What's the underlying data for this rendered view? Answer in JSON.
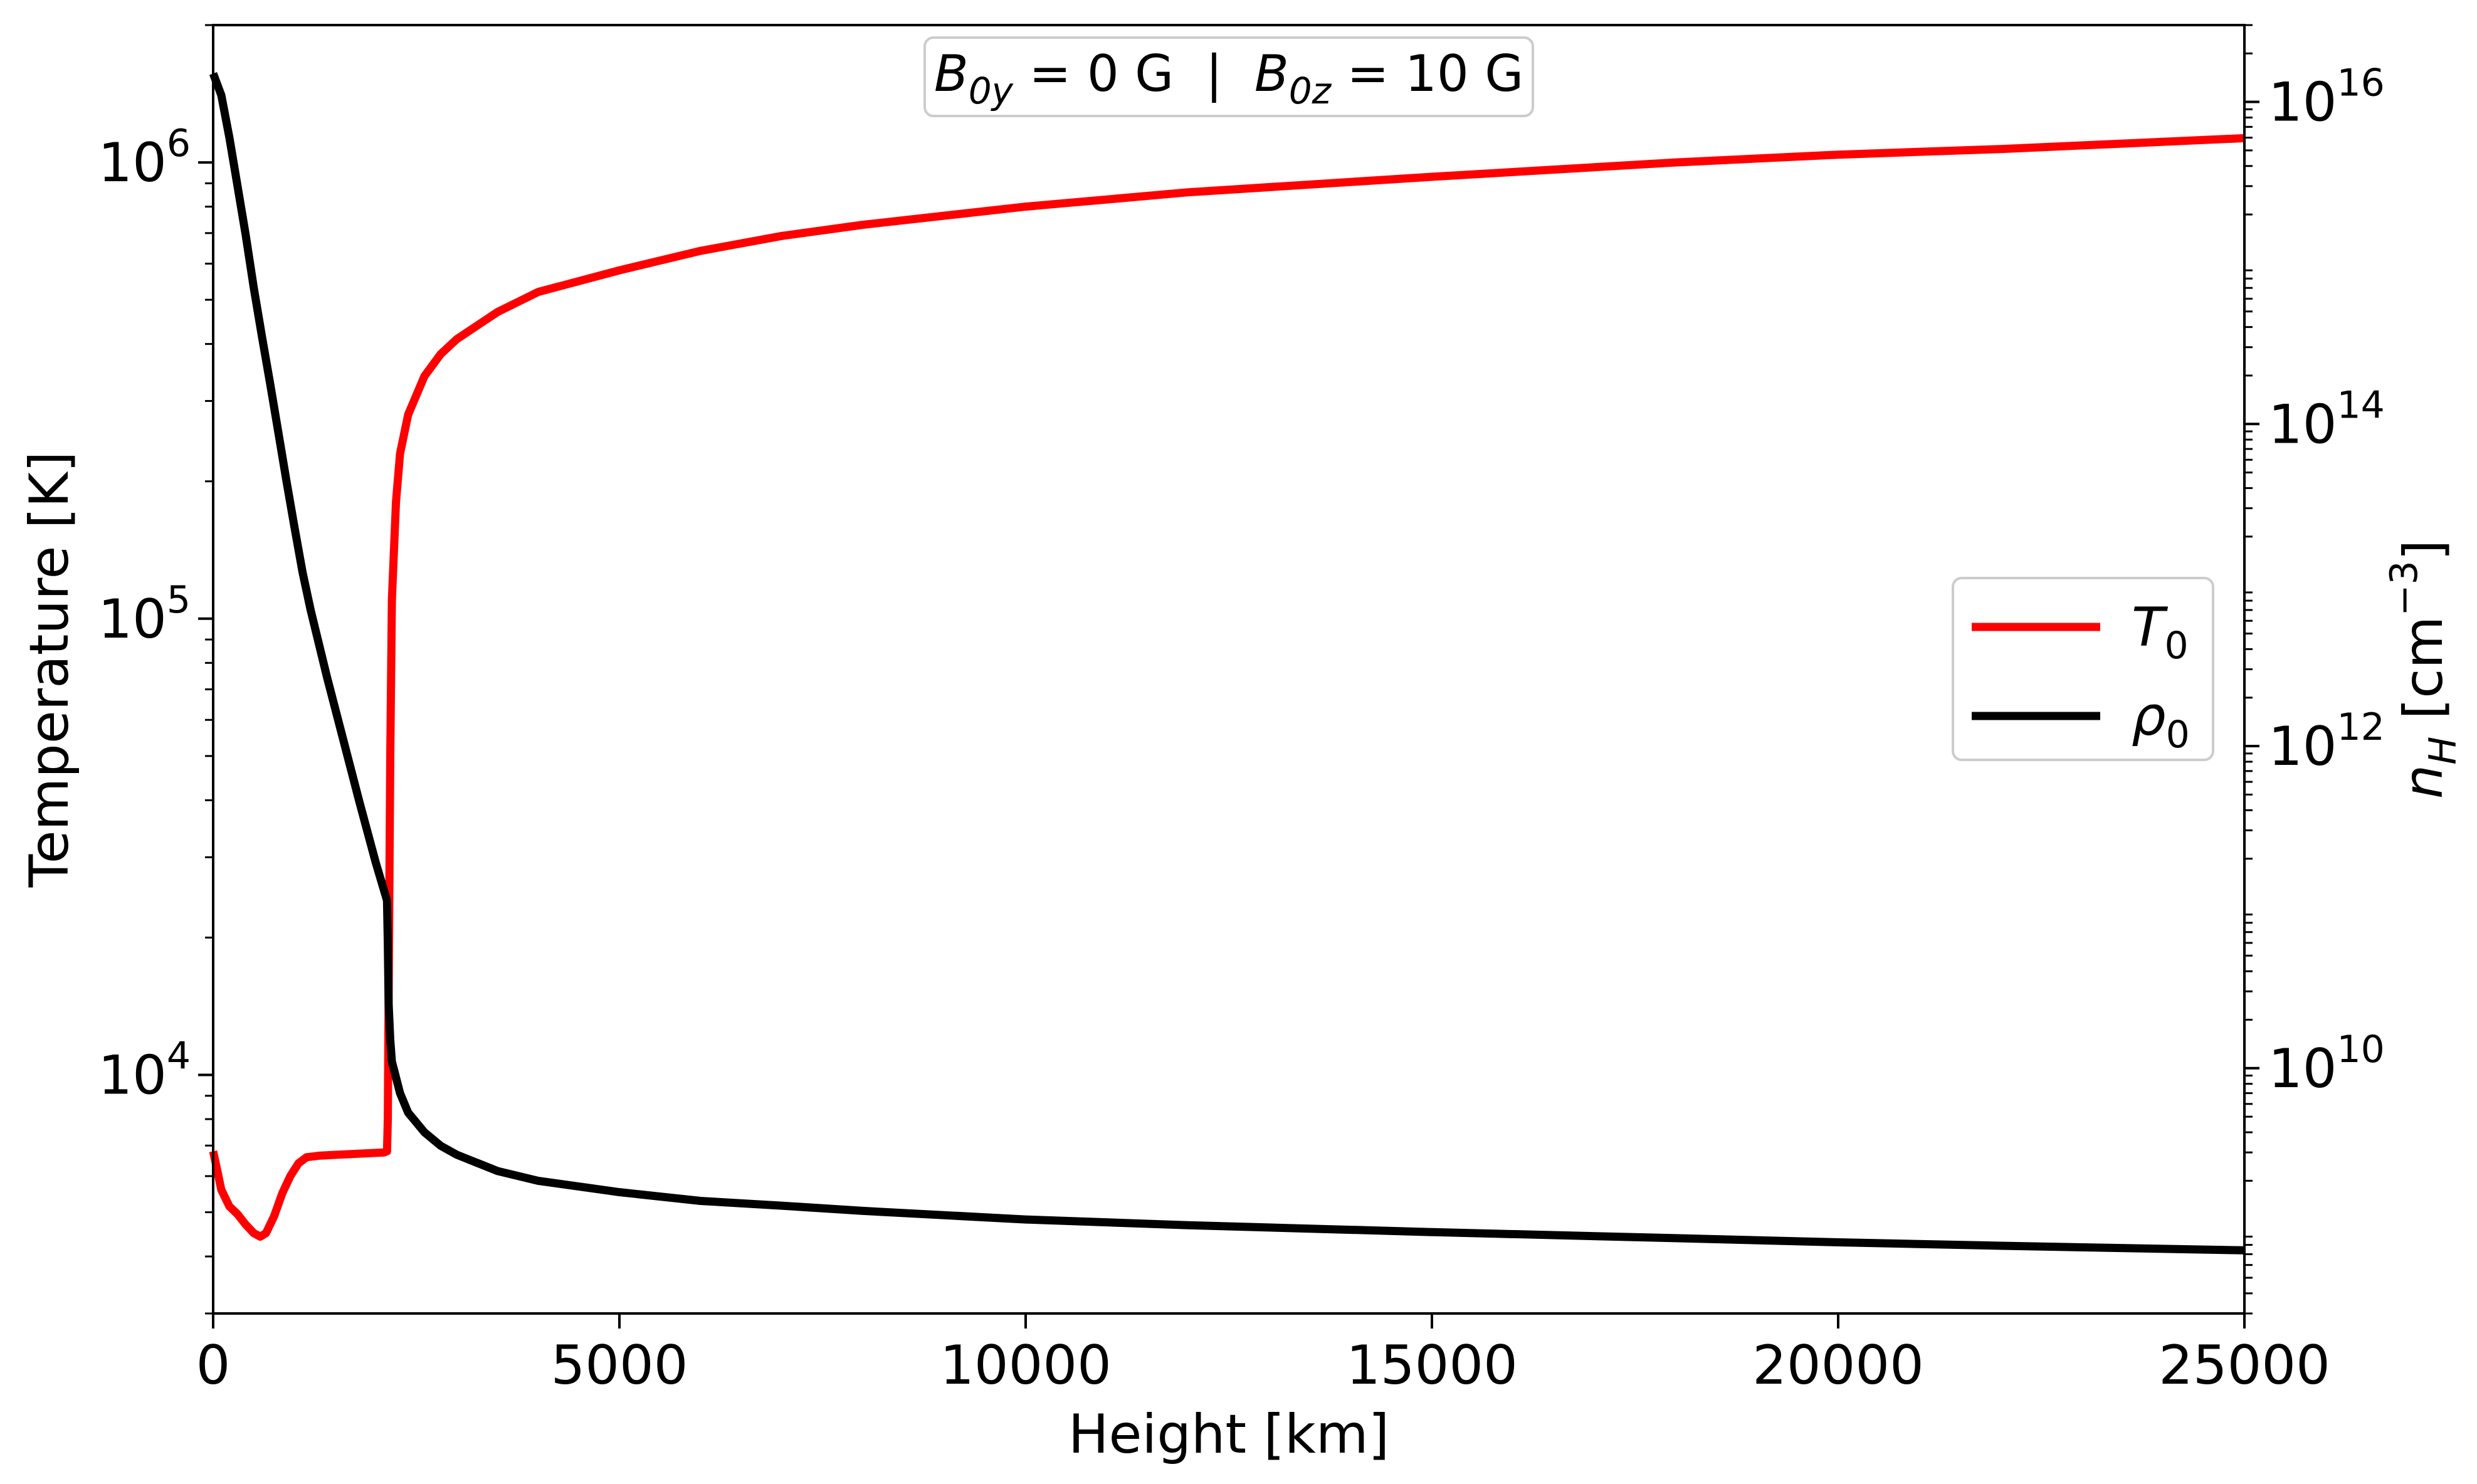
{
  "chart_data": {
    "type": "line",
    "annotation": {
      "segments": [
        {
          "text": "B",
          "italic": true
        },
        {
          "text": "0y",
          "sub": true,
          "italic": true
        },
        {
          "text": " = 0 G  |  "
        },
        {
          "text": "B",
          "italic": true
        },
        {
          "text": "0z",
          "sub": true,
          "italic": true
        },
        {
          "text": " = 10 G"
        }
      ]
    },
    "xlabel": "Height [km]",
    "ylabel_left": "Temperature [K]",
    "ylabel_right": {
      "base": "n",
      "sub": "H",
      "unit_pre": " [cm",
      "unit_sup": "−3",
      "unit_post": "]"
    },
    "xlim": [
      0,
      25000
    ],
    "ylim_left": [
      3000,
      2000000
    ],
    "ylim_right": [
      300000000,
      30000000000000000
    ],
    "yscale_left": "log",
    "yscale_right": "log",
    "xticks": [
      0,
      5000,
      10000,
      15000,
      20000,
      25000
    ],
    "xtick_labels": [
      "0",
      "5000",
      "10000",
      "15000",
      "20000",
      "25000"
    ],
    "yticks_left": [
      {
        "value": 10000,
        "base": "10",
        "exp": "4"
      },
      {
        "value": 100000,
        "base": "10",
        "exp": "5"
      },
      {
        "value": 1000000,
        "base": "10",
        "exp": "6"
      }
    ],
    "yticks_right": [
      {
        "value": 10000000000,
        "base": "10",
        "exp": "10"
      },
      {
        "value": 1000000000000,
        "base": "10",
        "exp": "12"
      },
      {
        "value": 100000000000000,
        "base": "10",
        "exp": "14"
      },
      {
        "value": 10000000000000000,
        "base": "10",
        "exp": "16"
      }
    ],
    "legend": {
      "placement": "center-right"
    },
    "grid": false,
    "series": [
      {
        "name": "T",
        "name_sub": "0",
        "axis": "left",
        "color": "#ff0000",
        "points": [
          [
            0,
            6800
          ],
          [
            40,
            6300
          ],
          [
            100,
            5600
          ],
          [
            200,
            5150
          ],
          [
            300,
            4950
          ],
          [
            400,
            4700
          ],
          [
            500,
            4500
          ],
          [
            580,
            4420
          ],
          [
            650,
            4500
          ],
          [
            750,
            4900
          ],
          [
            850,
            5500
          ],
          [
            950,
            6000
          ],
          [
            1050,
            6400
          ],
          [
            1150,
            6600
          ],
          [
            1300,
            6650
          ],
          [
            1500,
            6680
          ],
          [
            1800,
            6720
          ],
          [
            2100,
            6760
          ],
          [
            2140,
            6800
          ],
          [
            2150,
            8000
          ],
          [
            2160,
            15000
          ],
          [
            2180,
            50000
          ],
          [
            2200,
            110000
          ],
          [
            2250,
            180000
          ],
          [
            2300,
            230000
          ],
          [
            2400,
            280000
          ],
          [
            2600,
            340000
          ],
          [
            2800,
            380000
          ],
          [
            3000,
            410000
          ],
          [
            3500,
            470000
          ],
          [
            4000,
            520000
          ],
          [
            5000,
            580000
          ],
          [
            6000,
            640000
          ],
          [
            7000,
            690000
          ],
          [
            8000,
            730000
          ],
          [
            10000,
            800000
          ],
          [
            12000,
            860000
          ],
          [
            15000,
            930000
          ],
          [
            18000,
            1000000
          ],
          [
            20000,
            1040000
          ],
          [
            22000,
            1070000
          ],
          [
            25000,
            1130000
          ]
        ]
      },
      {
        "name": "ρ",
        "name_sub": "0",
        "axis": "right",
        "color": "#000000",
        "points": [
          [
            0,
            15000000000000000
          ],
          [
            100,
            11000000000000000
          ],
          [
            200,
            6000000000000000
          ],
          [
            300,
            3000000000000000
          ],
          [
            400,
            1500000000000000
          ],
          [
            500,
            700000000000000
          ],
          [
            600,
            350000000000000
          ],
          [
            700,
            180000000000000
          ],
          [
            800,
            90000000000000
          ],
          [
            900,
            45000000000000
          ],
          [
            1000,
            23000000000000
          ],
          [
            1100,
            12000000000000
          ],
          [
            1200,
            7000000000000
          ],
          [
            1400,
            2700000000000
          ],
          [
            1600,
            1100000000000
          ],
          [
            1800,
            450000000000
          ],
          [
            2000,
            190000000000
          ],
          [
            2140,
            110000000000
          ],
          [
            2150,
            60000000000
          ],
          [
            2160,
            25000000000
          ],
          [
            2180,
            15000000000
          ],
          [
            2200,
            11000000000
          ],
          [
            2300,
            7000000000
          ],
          [
            2400,
            5300000000
          ],
          [
            2600,
            4000000000
          ],
          [
            2800,
            3300000000
          ],
          [
            3000,
            2900000000
          ],
          [
            3500,
            2300000000
          ],
          [
            4000,
            2000000000
          ],
          [
            5000,
            1700000000
          ],
          [
            6000,
            1500000000
          ],
          [
            7000,
            1400000000
          ],
          [
            8000,
            1300000000
          ],
          [
            10000,
            1150000000
          ],
          [
            12000,
            1060000000
          ],
          [
            15000,
            960000000
          ],
          [
            18000,
            880000000
          ],
          [
            20000,
            830000000
          ],
          [
            22000,
            790000000
          ],
          [
            25000,
            740000000
          ]
        ]
      }
    ]
  }
}
